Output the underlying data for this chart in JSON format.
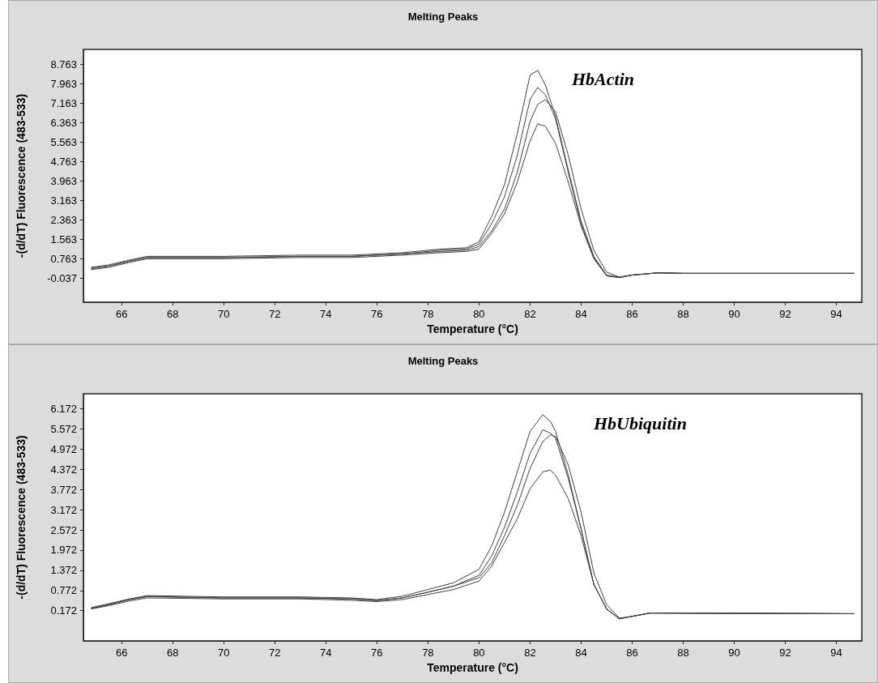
{
  "chart_data": [
    {
      "type": "line",
      "title": "Melting Peaks",
      "xlabel": "Temperature (°C)",
      "ylabel": "-(d/dT) Fluorescence (483-533)",
      "annotations": [
        "HbActin"
      ],
      "x": [
        64.8,
        65.5,
        66.3,
        67,
        70,
        73,
        75,
        77,
        78.5,
        79.5,
        80,
        80.5,
        81,
        81.5,
        82,
        82.3,
        82.6,
        83,
        83.5,
        84,
        84.5,
        85,
        85.5,
        86,
        87,
        88,
        94.7
      ],
      "series": [
        {
          "color": "#404040",
          "values": [
            0.4,
            0.5,
            0.7,
            0.85,
            0.85,
            0.9,
            0.9,
            1.0,
            1.15,
            1.2,
            1.45,
            2.5,
            3.8,
            5.9,
            8.3,
            8.5,
            7.9,
            6.6,
            4.4,
            2.3,
            0.85,
            0.08,
            -0.01,
            0.08,
            0.17,
            0.15,
            0.15
          ]
        },
        {
          "color": "#404040",
          "values": [
            0.35,
            0.45,
            0.65,
            0.8,
            0.8,
            0.85,
            0.85,
            0.95,
            1.1,
            1.15,
            1.35,
            2.2,
            3.3,
            5.0,
            7.3,
            7.8,
            7.5,
            6.5,
            4.3,
            2.2,
            0.8,
            0.05,
            -0.02,
            0.08,
            0.17,
            0.15,
            0.15
          ]
        },
        {
          "color": "#404040",
          "values": [
            0.35,
            0.45,
            0.65,
            0.8,
            0.8,
            0.85,
            0.85,
            0.95,
            1.05,
            1.1,
            1.25,
            1.9,
            2.8,
            4.3,
            6.4,
            7.1,
            7.3,
            6.8,
            5.0,
            2.8,
            1.1,
            0.2,
            0.0,
            0.08,
            0.17,
            0.15,
            0.15
          ]
        },
        {
          "color": "#404040",
          "values": [
            0.3,
            0.4,
            0.6,
            0.75,
            0.75,
            0.8,
            0.8,
            0.9,
            1.0,
            1.05,
            1.15,
            1.8,
            2.6,
            3.9,
            5.6,
            6.3,
            6.2,
            5.5,
            3.9,
            2.1,
            0.75,
            0.05,
            -0.03,
            0.08,
            0.17,
            0.15,
            0.15
          ]
        }
      ],
      "xlim": [
        64.5,
        95
      ],
      "xticks": [
        66,
        68,
        70,
        72,
        74,
        76,
        78,
        80,
        82,
        84,
        86,
        88,
        90,
        92,
        94
      ],
      "ylim": [
        -1.037,
        9.363
      ],
      "yticks": [
        -0.037,
        0.763,
        1.563,
        2.363,
        3.163,
        3.963,
        4.763,
        5.563,
        6.363,
        7.163,
        7.963,
        8.763
      ],
      "grid": false,
      "marker": "none",
      "line_style": "solid"
    },
    {
      "type": "line",
      "title": "Melting Peaks",
      "xlabel": "Temperature (°C)",
      "ylabel": "-(d/dT) Fluorescence (483-533)",
      "annotations": [
        "HbUbiquitin"
      ],
      "x": [
        64.8,
        65.5,
        66.3,
        67,
        70,
        73,
        75,
        76,
        77,
        78,
        79,
        80,
        80.5,
        81,
        81.5,
        82,
        82.5,
        82.8,
        83,
        83.5,
        84,
        84.5,
        85,
        85.5,
        86,
        86.7,
        94.7
      ],
      "series": [
        {
          "color": "#404040",
          "values": [
            0.26,
            0.38,
            0.52,
            0.62,
            0.58,
            0.58,
            0.55,
            0.5,
            0.6,
            0.8,
            1.0,
            1.4,
            2.1,
            3.1,
            4.3,
            5.5,
            6.0,
            5.8,
            5.5,
            4.2,
            2.6,
            0.95,
            0.22,
            -0.07,
            0.0,
            0.1,
            0.08
          ]
        },
        {
          "color": "#404040",
          "values": [
            0.24,
            0.35,
            0.5,
            0.59,
            0.55,
            0.55,
            0.52,
            0.47,
            0.55,
            0.72,
            0.9,
            1.22,
            1.8,
            2.65,
            3.7,
            4.85,
            5.55,
            5.45,
            5.3,
            4.1,
            2.6,
            0.95,
            0.22,
            -0.07,
            0.0,
            0.1,
            0.08
          ]
        },
        {
          "color": "#404040",
          "values": [
            0.24,
            0.35,
            0.5,
            0.59,
            0.55,
            0.55,
            0.52,
            0.47,
            0.55,
            0.72,
            0.9,
            1.15,
            1.6,
            2.4,
            3.3,
            4.4,
            5.2,
            5.4,
            5.35,
            4.5,
            3.1,
            1.3,
            0.35,
            -0.05,
            0.0,
            0.1,
            0.08
          ]
        },
        {
          "color": "#404040",
          "values": [
            0.22,
            0.32,
            0.46,
            0.55,
            0.52,
            0.52,
            0.48,
            0.44,
            0.5,
            0.65,
            0.8,
            1.05,
            1.5,
            2.2,
            2.9,
            3.8,
            4.3,
            4.35,
            4.2,
            3.5,
            2.4,
            0.95,
            0.22,
            -0.07,
            0.0,
            0.1,
            0.08
          ]
        }
      ],
      "xlim": [
        64.5,
        95
      ],
      "xticks": [
        66,
        68,
        70,
        72,
        74,
        76,
        78,
        80,
        82,
        84,
        86,
        88,
        90,
        92,
        94
      ],
      "ylim": [
        -0.728,
        6.622
      ],
      "yticks": [
        0.172,
        0.772,
        1.372,
        1.972,
        2.572,
        3.172,
        3.772,
        4.372,
        4.972,
        5.572,
        6.172
      ],
      "grid": false,
      "marker": "none",
      "line_style": "solid"
    }
  ]
}
